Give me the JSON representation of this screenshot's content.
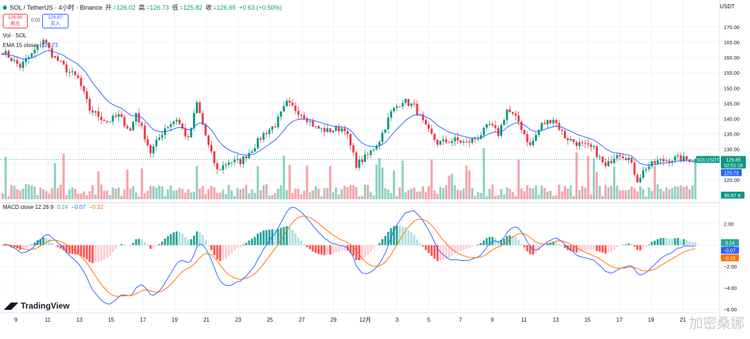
{
  "header": {
    "title": "SOL / TetherUS · 4小时 · Binance",
    "ohlc": [
      {
        "label": "开",
        "value": "=126.02"
      },
      {
        "label": "高",
        "value": "=126.73"
      },
      {
        "label": "低",
        "value": "=125.82"
      },
      {
        "label": "收",
        "value": "=126.65"
      }
    ],
    "change": "+0.63 (+0.50%)",
    "currency": "USDT"
  },
  "trade": {
    "sell_price": "126.66",
    "sell_label": "卖出",
    "spread": "0.01",
    "buy_price": "126.67",
    "buy_label": "买入"
  },
  "indicators": {
    "vol_label": "Vol · SOL",
    "ema_label": "EMA 15 close",
    "ema_value": "125.73",
    "macd_label": "MACD close 12 26 9",
    "macd_hist": "0.24",
    "macd_line": "−0.07",
    "macd_signal": "−0.32"
  },
  "badges": {
    "symbol": "SOLUSDT",
    "price": "126.65",
    "countdown": "02:51:18",
    "ema": "125.73",
    "volume": "85.87 K",
    "macd_hist": "0.24",
    "macd_line": "-0.07",
    "macd_signal": "-0.32"
  },
  "brand": {
    "watermark": "TradingView",
    "overlay_text": "加密桑娜"
  },
  "colors": {
    "up": "#089981",
    "down": "#f23645",
    "ema": "#2962ff",
    "macd": "#2962ff",
    "signal": "#ff6d00",
    "hist_up_strong": "#26a69a",
    "hist_up_weak": "#b2dfdb",
    "hist_down_strong": "#ff5252",
    "hist_down_weak": "#ffcdd2"
  },
  "chart_data": [
    {
      "type": "candlestick",
      "title": "SOL / TetherUS · 4小时 · Binance",
      "y_ticks": [
        120,
        125,
        130,
        135,
        140,
        145,
        150,
        155,
        160,
        165,
        170
      ],
      "ylim": [
        115,
        172
      ],
      "x_ticks": [
        "9",
        "11",
        "13",
        "15",
        "17",
        "19",
        "21",
        "23",
        "25",
        "27",
        "29",
        "12月",
        "3",
        "5",
        "7",
        "9",
        "11",
        "13",
        "15",
        "17",
        "19",
        "21"
      ],
      "current_price": 126.65,
      "ema_last": 125.73,
      "anchors": [
        [
          0,
          162
        ],
        [
          6,
          157
        ],
        [
          10,
          161
        ],
        [
          14,
          166
        ],
        [
          17,
          161
        ],
        [
          22,
          156
        ],
        [
          26,
          153
        ],
        [
          30,
          143
        ],
        [
          36,
          139
        ],
        [
          40,
          141
        ],
        [
          44,
          136
        ],
        [
          46,
          142
        ],
        [
          51,
          129
        ],
        [
          56,
          137
        ],
        [
          60,
          140
        ],
        [
          64,
          133
        ],
        [
          67,
          145
        ],
        [
          71,
          131
        ],
        [
          74,
          123
        ],
        [
          78,
          126
        ],
        [
          82,
          126
        ],
        [
          86,
          130
        ],
        [
          90,
          135
        ],
        [
          94,
          138
        ],
        [
          98,
          145
        ],
        [
          104,
          141
        ],
        [
          108,
          137
        ],
        [
          112,
          136
        ],
        [
          118,
          137
        ],
        [
          122,
          125
        ],
        [
          126,
          128
        ],
        [
          130,
          133
        ],
        [
          134,
          142
        ],
        [
          138,
          146
        ],
        [
          142,
          144
        ],
        [
          146,
          137
        ],
        [
          150,
          132
        ],
        [
          156,
          133
        ],
        [
          160,
          132
        ],
        [
          164,
          134
        ],
        [
          168,
          138
        ],
        [
          171,
          135
        ],
        [
          174,
          143
        ],
        [
          178,
          139
        ],
        [
          182,
          131
        ],
        [
          186,
          138
        ],
        [
          190,
          140
        ],
        [
          194,
          134
        ],
        [
          198,
          132
        ],
        [
          204,
          130
        ],
        [
          208,
          124
        ],
        [
          212,
          129
        ],
        [
          216,
          127
        ],
        [
          219,
          120
        ],
        [
          222,
          124
        ],
        [
          226,
          126
        ],
        [
          232,
          127
        ],
        [
          237,
          126.65
        ]
      ],
      "volume": {
        "last": "85.87 K"
      },
      "ema": {
        "name": "EMA 15 close",
        "last": 125.73
      }
    },
    {
      "type": "macd",
      "title": "MACD close 12 26 9",
      "y_ticks": [
        2.0,
        0,
        -2.0,
        -4.0,
        -6.0
      ],
      "ylim": [
        -6.2,
        3.2
      ],
      "last": {
        "histogram": 0.24,
        "macd": -0.07,
        "signal": -0.32
      }
    }
  ]
}
